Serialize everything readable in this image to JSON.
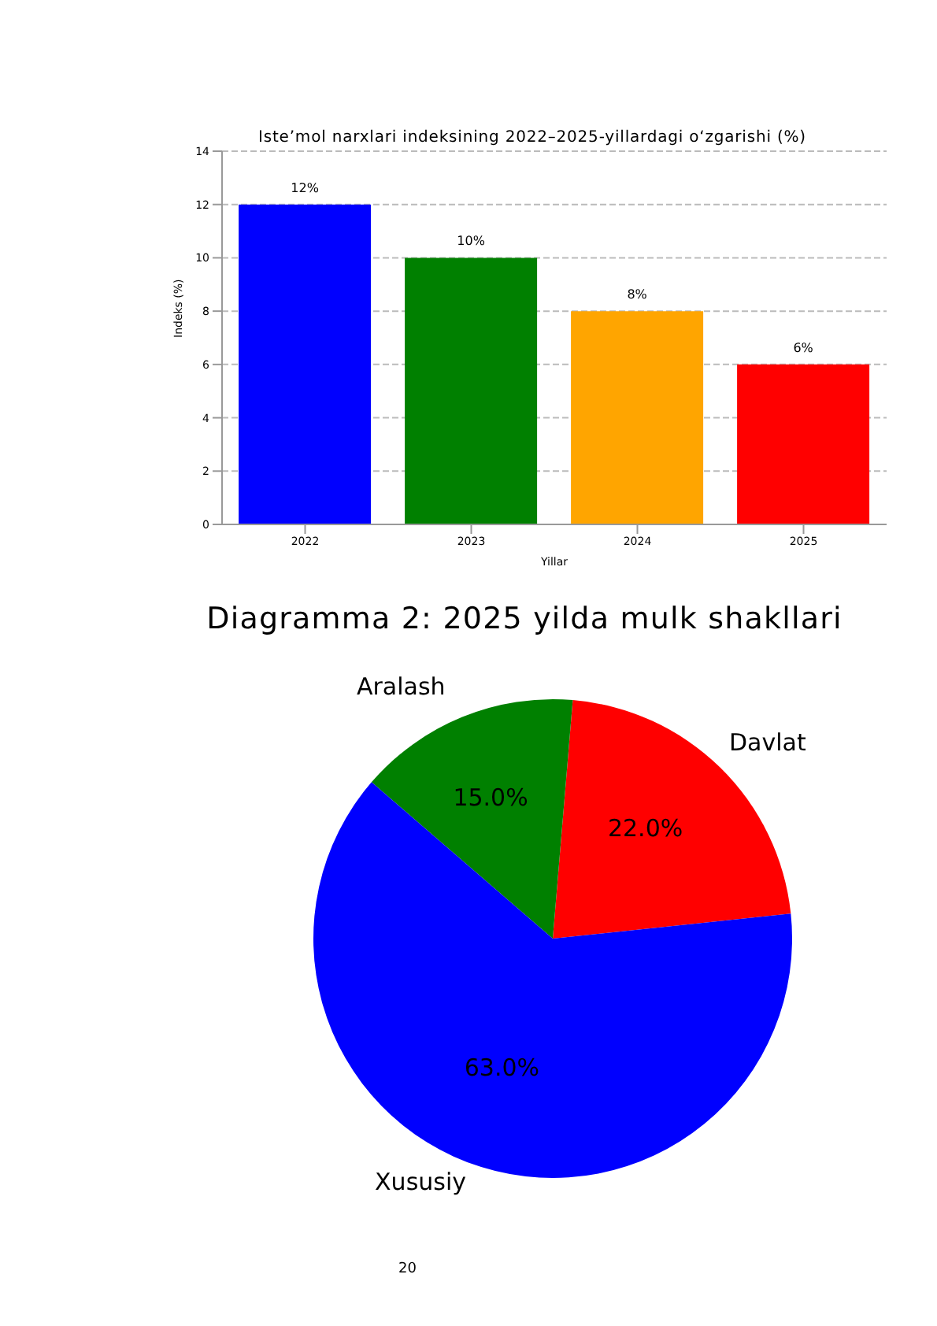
{
  "chart_data": [
    {
      "type": "bar",
      "title": "Iste’mol narxlari indeksining 2022–2025-yillardagi o‘zgarishi (%)",
      "xlabel": "Yillar",
      "ylabel": "Indeks (%)",
      "categories": [
        "2022",
        "2023",
        "2024",
        "2025"
      ],
      "values": [
        12,
        10,
        8,
        6
      ],
      "colors": [
        "#0000ff",
        "#008000",
        "#ffa500",
        "#ff0000"
      ],
      "value_labels": [
        "12%",
        "10%",
        "8%",
        "6%"
      ],
      "ylim": [
        0,
        14
      ],
      "yticks": [
        0,
        2,
        4,
        6,
        8,
        10,
        12,
        14
      ],
      "grid": "y",
      "line_style": "dashed"
    },
    {
      "type": "pie",
      "title": "Diagramma 2: 2025 yilda mulk shakllari",
      "categories": [
        "Davlat",
        "Aralash",
        "Xususiy"
      ],
      "values": [
        22,
        15,
        63
      ],
      "colors": [
        "#ff0000",
        "#008000",
        "#0000ff"
      ],
      "value_labels": [
        "22.0%",
        "15.0%",
        "63.0%"
      ],
      "annotations": [
        "20"
      ]
    }
  ]
}
